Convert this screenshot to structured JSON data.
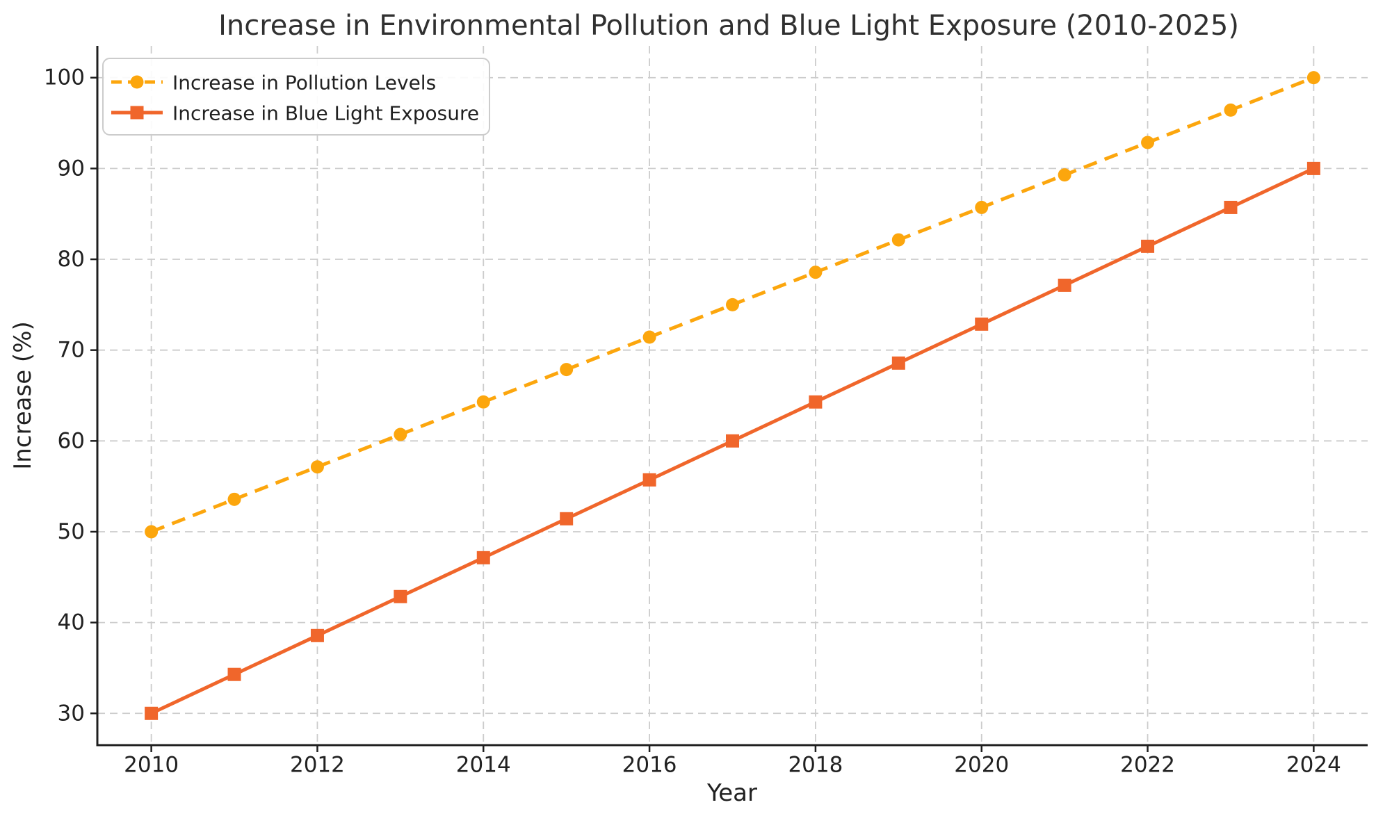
{
  "chart_data": {
    "type": "line",
    "title": "Increase in Environmental Pollution and Blue Light Exposure (2010-2025)",
    "xlabel": "Year",
    "ylabel": "Increase (%)",
    "x": [
      2010,
      2011,
      2012,
      2013,
      2014,
      2015,
      2016,
      2017,
      2018,
      2019,
      2020,
      2021,
      2022,
      2023,
      2024
    ],
    "series": [
      {
        "name": "Increase in Pollution Levels",
        "color": "#FCA60D",
        "linestyle": "dashed",
        "marker": "circle",
        "values": [
          50.0,
          53.57,
          57.14,
          60.71,
          64.29,
          67.86,
          71.43,
          75.0,
          78.57,
          82.14,
          85.71,
          89.29,
          92.86,
          96.43,
          100.0
        ]
      },
      {
        "name": "Increase in Blue Light Exposure",
        "color": "#F0662B",
        "linestyle": "solid",
        "marker": "square",
        "values": [
          30.0,
          34.29,
          38.57,
          42.86,
          47.14,
          51.43,
          55.71,
          60.0,
          64.29,
          68.57,
          72.86,
          77.14,
          81.43,
          85.71,
          90.0
        ]
      }
    ],
    "xticks": [
      2010,
      2012,
      2014,
      2016,
      2018,
      2020,
      2022,
      2024
    ],
    "xtick_labels": [
      "2010",
      "2012",
      "2014",
      "2016",
      "2018",
      "2020",
      "2022",
      "2024"
    ],
    "yticks": [
      30,
      40,
      50,
      60,
      70,
      80,
      90,
      100
    ],
    "ytick_labels": [
      "30",
      "40",
      "50",
      "60",
      "70",
      "80",
      "90",
      "100"
    ],
    "xlim": [
      2009.35,
      2024.65
    ],
    "ylim": [
      26.5,
      103.5
    ],
    "grid": true,
    "grid_style": "dashed",
    "legend_position": "upper left",
    "colors": {
      "grid": "#cccccc",
      "axis": "#1f1f1f",
      "text": "#212121",
      "background": "#ffffff"
    }
  }
}
